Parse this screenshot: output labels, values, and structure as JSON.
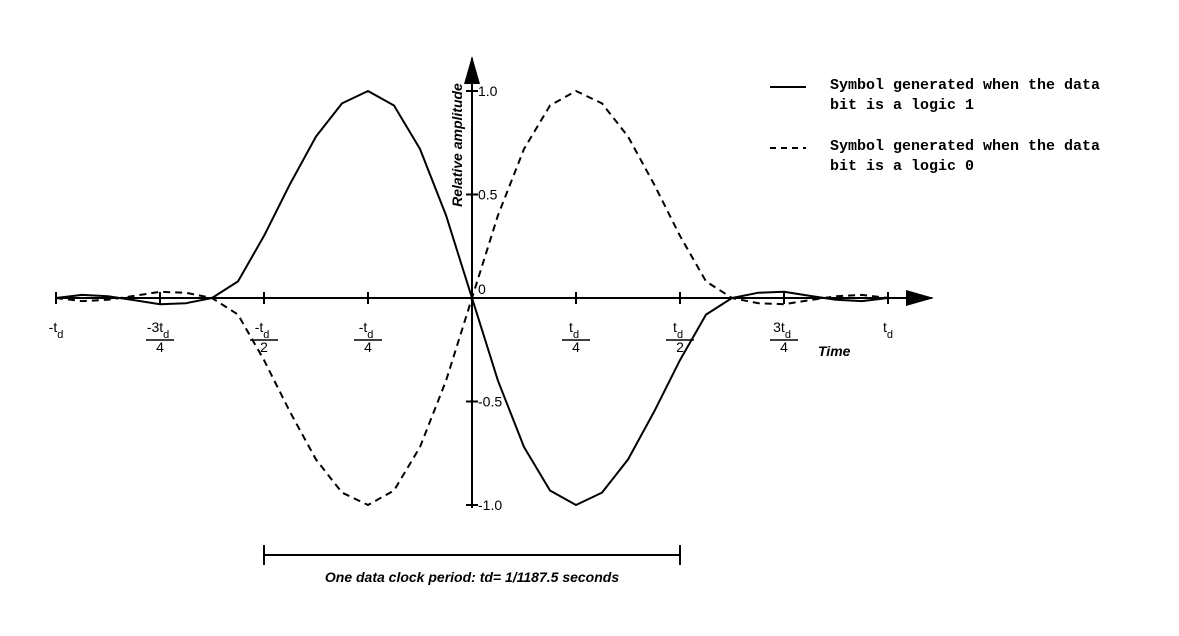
{
  "chart_data": {
    "type": "line",
    "y_label": "Relative amplitude",
    "x_label": "Time",
    "annotation": "One data clock period: td= 1/1187.5 seconds",
    "x": [
      -1,
      -0.9375,
      -0.875,
      -0.8125,
      -0.75,
      -0.6875,
      -0.625,
      -0.5625,
      -0.5,
      -0.4375,
      -0.375,
      -0.3125,
      -0.25,
      -0.1875,
      -0.125,
      -0.0625,
      0,
      0.0625,
      0.125,
      0.1875,
      0.25,
      0.3125,
      0.375,
      0.4375,
      0.5,
      0.5625,
      0.625,
      0.6875,
      0.75,
      0.8125,
      0.875,
      0.9375,
      1
    ],
    "series": [
      {
        "name": "Symbol generated when the data bit is a logic 1",
        "color": "#000000",
        "dash": false,
        "values": [
          0,
          0.015,
          0.008,
          -0.01,
          -0.03,
          -0.025,
          0,
          0.08,
          0.3,
          0.55,
          0.78,
          0.94,
          1,
          0.93,
          0.72,
          0.4,
          0,
          -0.4,
          -0.72,
          -0.93,
          -1,
          -0.94,
          -0.78,
          -0.55,
          -0.3,
          -0.08,
          0,
          0.025,
          0.03,
          0.01,
          -0.008,
          -0.015,
          0
        ]
      },
      {
        "name": "Symbol generated when the data bit is a logic 0",
        "color": "#000000",
        "dash": true,
        "values": [
          0,
          -0.015,
          -0.008,
          0.01,
          0.03,
          0.025,
          0,
          -0.08,
          -0.3,
          -0.55,
          -0.78,
          -0.94,
          -1,
          -0.93,
          -0.72,
          -0.4,
          0,
          0.4,
          0.72,
          0.93,
          1,
          0.94,
          0.78,
          0.55,
          0.3,
          0.08,
          0,
          -0.025,
          -0.03,
          -0.01,
          0.008,
          0.015,
          0
        ]
      }
    ],
    "xlim": [
      -1,
      1
    ],
    "ylim": [
      -1,
      1
    ],
    "xticks": [
      {
        "value": -1,
        "label": "-td"
      },
      {
        "value": -0.75,
        "label": "-3td/4"
      },
      {
        "value": -0.5,
        "label": "-td/2"
      },
      {
        "value": -0.25,
        "label": "-td/4"
      },
      {
        "value": 0.25,
        "label": "td/4"
      },
      {
        "value": 0.5,
        "label": "td/2"
      },
      {
        "value": 0.75,
        "label": "3td/4"
      },
      {
        "value": 1,
        "label": "td"
      }
    ],
    "yticks": [
      {
        "value": 1,
        "label": "1.0"
      },
      0.5,
      0,
      -0.5,
      {
        "value": -1,
        "label": "-1.0"
      }
    ]
  }
}
